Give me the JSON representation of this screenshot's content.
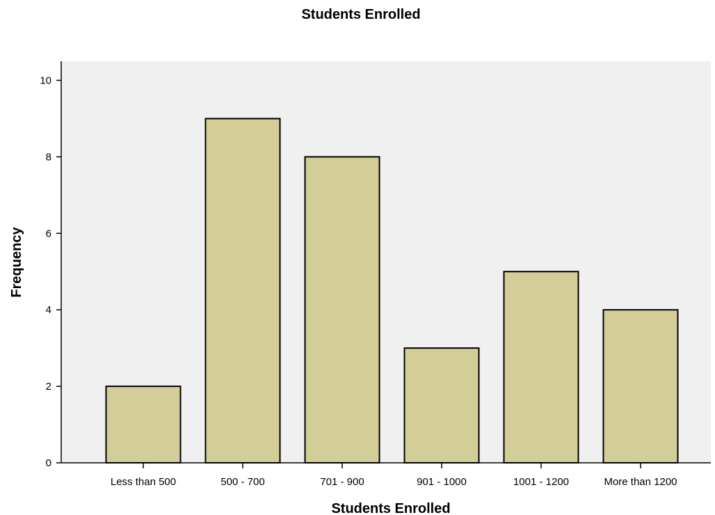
{
  "chart_data": {
    "type": "bar",
    "title": "Students Enrolled",
    "xlabel": "Students Enrolled",
    "ylabel": "Frequency",
    "categories": [
      "Less than 500",
      "500 - 700",
      "701 - 900",
      "901 - 1000",
      "1001 - 1200",
      "More than 1200"
    ],
    "values": [
      2,
      9,
      8,
      3,
      5,
      4
    ],
    "ylim": [
      0,
      10.5
    ],
    "yticks": [
      "0",
      "2",
      "4",
      "6",
      "8",
      "10"
    ],
    "grid": false,
    "legend": "none"
  },
  "colors": {
    "plot_background": "#f0f0f0",
    "bar_fill": "#d3cd98",
    "bar_stroke": "#000000",
    "axis": "#000000"
  }
}
